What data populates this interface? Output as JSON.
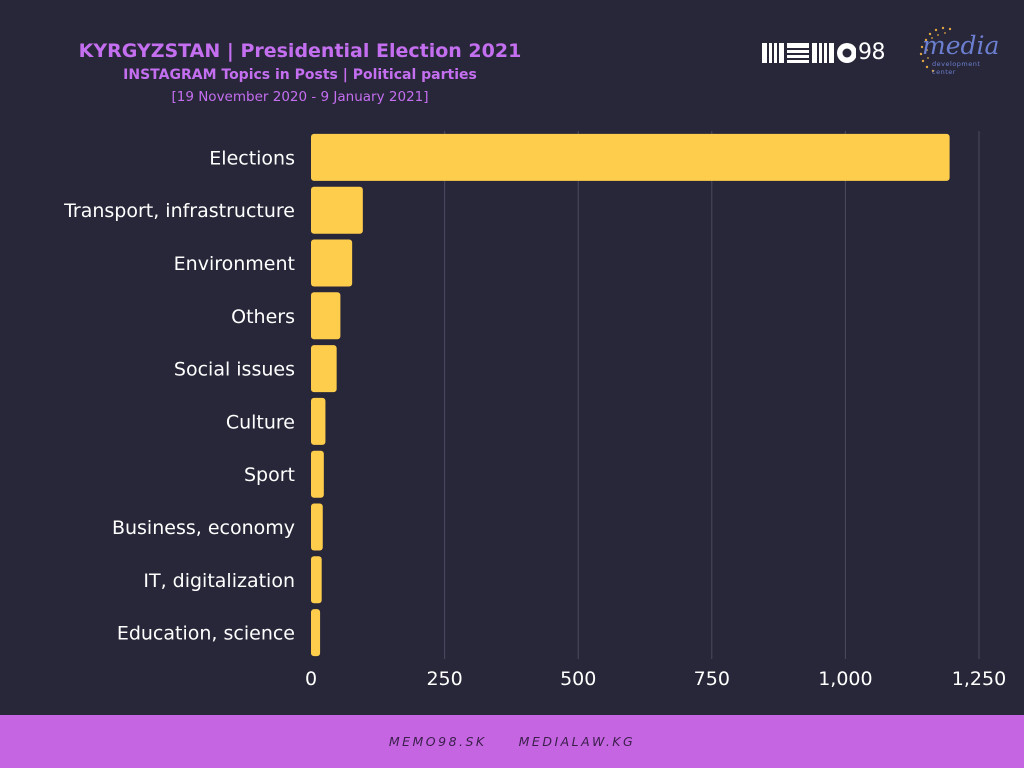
{
  "header": {
    "title": "KYRGYZSTAN | Presidential Election 2021",
    "subtitle": "INSTAGRAM Topics in Posts | Political parties",
    "date_range": "[19 November 2020 - 9 January 2021]"
  },
  "logos": {
    "memo98_text": "MEMO98",
    "memo98_digits": "98",
    "media_word": "media",
    "media_sub": "development center"
  },
  "footer": {
    "links": [
      "MEMO98.SK",
      "MEDIALAW.KG"
    ]
  },
  "colors": {
    "background": "#282739",
    "bar": "#ffcd4c",
    "title": "#c46ef0",
    "footer_band": "#c565e2"
  },
  "chart_data": {
    "type": "bar",
    "orientation": "horizontal",
    "categories": [
      "Elections",
      "Transport, infrastructure",
      "Environment",
      "Others",
      "Social issues",
      "Culture",
      "Sport",
      "Business, economy",
      "IT, digitalization",
      "Education, science"
    ],
    "values": [
      1195,
      97,
      77,
      55,
      48,
      27,
      24,
      22,
      20,
      17
    ],
    "xlim": [
      0,
      1250
    ],
    "xticks": [
      0,
      250,
      500,
      750,
      1000,
      1250
    ],
    "xtick_labels": [
      "0",
      "250",
      "500",
      "750",
      "1,000",
      "1,250"
    ],
    "grid": "vertical",
    "legend": "none"
  }
}
